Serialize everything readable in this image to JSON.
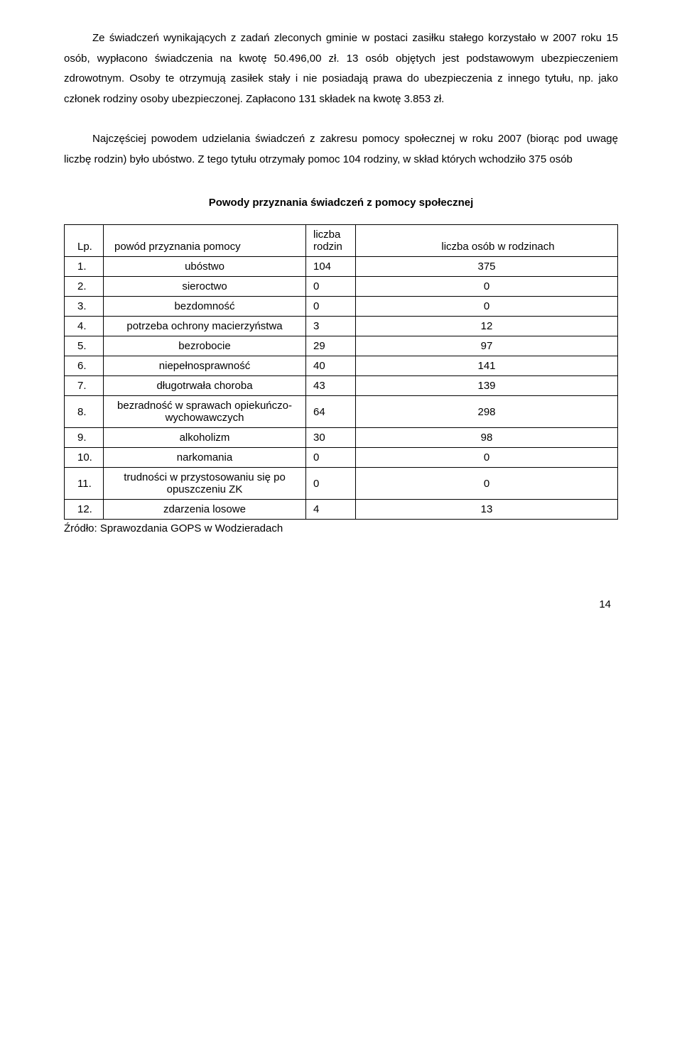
{
  "paragraphs": {
    "p1": "Ze świadczeń wynikających z zadań zleconych gminie w postaci zasiłku stałego korzystało w 2007 roku 15 osób, wypłacono świadczenia na kwotę 50.496,00 zł. 13 osób objętych jest podstawowym ubezpieczeniem zdrowotnym. Osoby te otrzymują zasiłek stały i nie posiadają prawa do ubezpieczenia z innego tytułu, np. jako członek rodziny osoby ubezpieczonej. Zapłacono 131 składek na kwotę 3.853 zł.",
    "p2": "Najczęściej powodem udzielania świadczeń z zakresu pomocy społecznej w roku 2007 (biorąc pod uwagę liczbę rodzin) było ubóstwo. Z tego tytułu otrzymały pomoc 104 rodziny, w skład których wchodziło 375 osób"
  },
  "table": {
    "title": "Powody przyznania świadczeń z pomocy społecznej",
    "headers": {
      "lp": "Lp.",
      "reason": "powód przyznania pomocy",
      "families": "liczba rodzin",
      "people": "liczba osób w rodzinach"
    },
    "rows": [
      {
        "lp": "1.",
        "reason": "ubóstwo",
        "families": "104",
        "people": "375"
      },
      {
        "lp": "2.",
        "reason": "sieroctwo",
        "families": "0",
        "people": "0"
      },
      {
        "lp": "3.",
        "reason": "bezdomność",
        "families": "0",
        "people": "0"
      },
      {
        "lp": "4.",
        "reason": "potrzeba ochrony macierzyństwa",
        "families": "3",
        "people": "12"
      },
      {
        "lp": "5.",
        "reason": "bezrobocie",
        "families": "29",
        "people": "97"
      },
      {
        "lp": "6.",
        "reason": "niepełnosprawność",
        "families": "40",
        "people": "141"
      },
      {
        "lp": "7.",
        "reason": "długotrwała choroba",
        "families": "43",
        "people": "139"
      },
      {
        "lp": "8.",
        "reason": "bezradność w sprawach opiekuńczo-wychowawczych",
        "families": "64",
        "people": "298"
      },
      {
        "lp": "9.",
        "reason": "alkoholizm",
        "families": "30",
        "people": "98"
      },
      {
        "lp": "10.",
        "reason": "narkomania",
        "families": "0",
        "people": "0"
      },
      {
        "lp": "11.",
        "reason": "trudności w przystosowaniu się po opuszczeniu ZK",
        "families": "0",
        "people": "0"
      },
      {
        "lp": "12.",
        "reason": "zdarzenia losowe",
        "families": "4",
        "people": "13"
      }
    ]
  },
  "source": "Źródło: Sprawozdania GOPS w Wodzieradach",
  "page_number": "14"
}
